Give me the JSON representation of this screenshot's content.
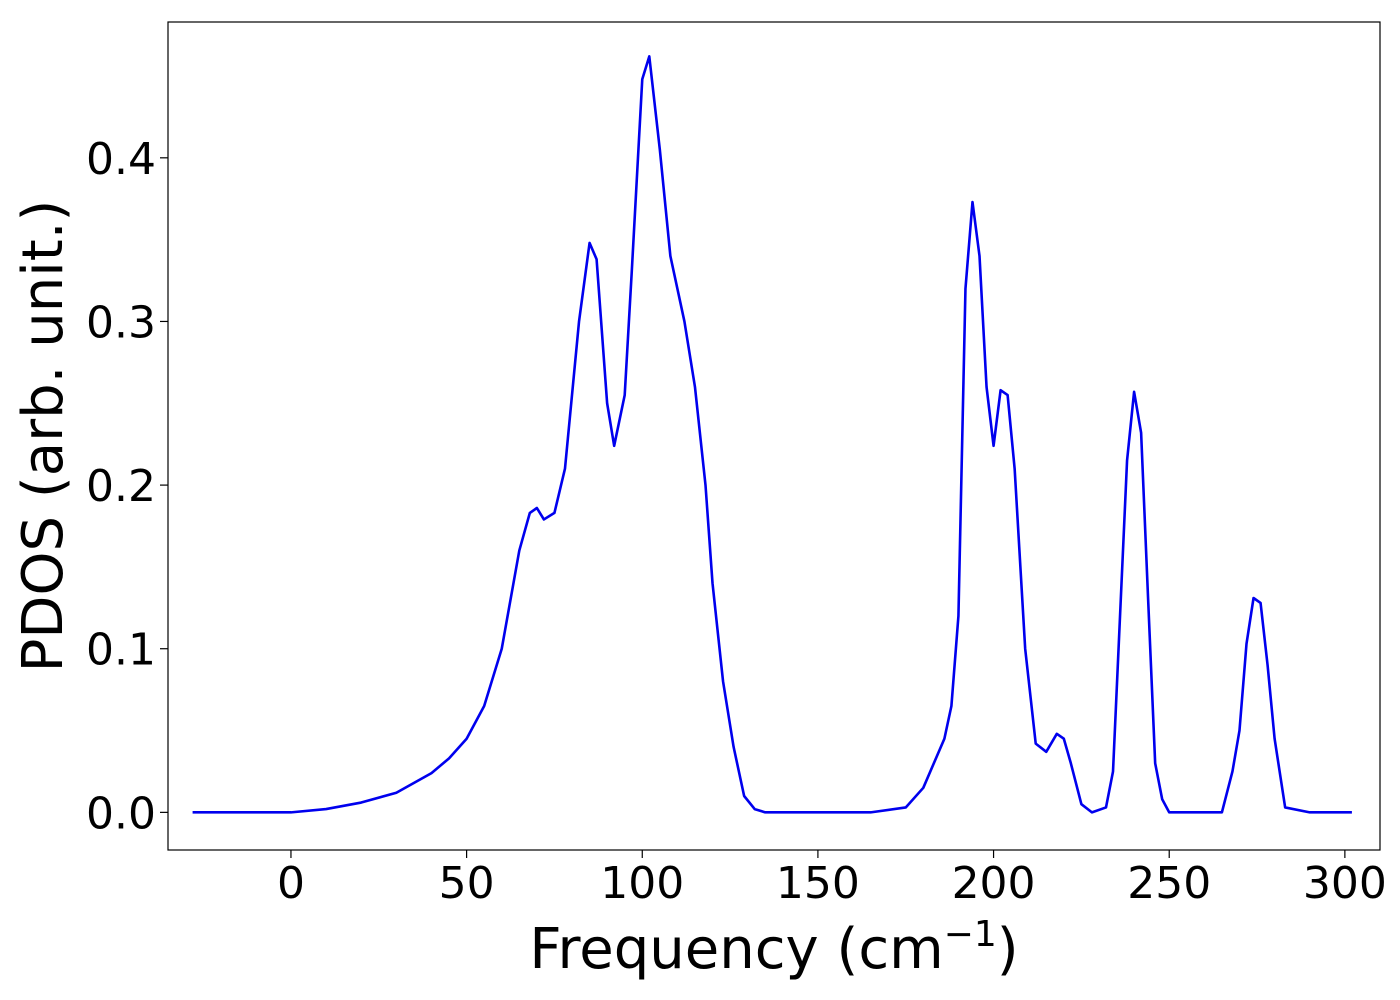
{
  "chart_data": {
    "type": "line",
    "title": "",
    "xlabel": "Frequency (cm",
    "xlabel_sup": "−1",
    "xlabel_close": ")",
    "ylabel": "PDOS (arb. unit.)",
    "xlim": [
      -35,
      310
    ],
    "ylim": [
      -0.023,
      0.483
    ],
    "xticks": [
      0,
      50,
      100,
      150,
      200,
      250,
      300
    ],
    "yticks": [
      0.0,
      0.1,
      0.2,
      0.3,
      0.4
    ],
    "xtick_labels": [
      "0",
      "50",
      "100",
      "150",
      "200",
      "250",
      "300"
    ],
    "ytick_labels": [
      "0.0",
      "0.1",
      "0.2",
      "0.3",
      "0.4"
    ],
    "grid": false,
    "legend": "none",
    "series": [
      {
        "color": "#0000ee",
        "x": [
          -28,
          0,
          10,
          20,
          30,
          40,
          45,
          50,
          55,
          60,
          65,
          68,
          70,
          72,
          75,
          78,
          82,
          85,
          87,
          90,
          92,
          95,
          97,
          100,
          102,
          105,
          108,
          112,
          115,
          118,
          120,
          123,
          126,
          129,
          132,
          135,
          150,
          165,
          175,
          180,
          183,
          186,
          188,
          190,
          192,
          194,
          196,
          198,
          200,
          202,
          204,
          206,
          209,
          212,
          215,
          218,
          220,
          222,
          225,
          228,
          232,
          234,
          236,
          238,
          240,
          242,
          244,
          246,
          248,
          250,
          254,
          265,
          268,
          270,
          272,
          274,
          276,
          278,
          280,
          283,
          290,
          302
        ],
        "y": [
          0.0,
          0.0,
          0.002,
          0.006,
          0.012,
          0.024,
          0.033,
          0.045,
          0.065,
          0.1,
          0.16,
          0.183,
          0.186,
          0.179,
          0.183,
          0.21,
          0.3,
          0.348,
          0.338,
          0.25,
          0.224,
          0.255,
          0.33,
          0.448,
          0.462,
          0.405,
          0.34,
          0.3,
          0.26,
          0.2,
          0.14,
          0.08,
          0.04,
          0.01,
          0.002,
          0.0,
          0.0,
          0.0,
          0.003,
          0.015,
          0.03,
          0.045,
          0.065,
          0.12,
          0.32,
          0.373,
          0.34,
          0.26,
          0.224,
          0.258,
          0.255,
          0.21,
          0.1,
          0.042,
          0.037,
          0.048,
          0.045,
          0.03,
          0.005,
          0.0,
          0.003,
          0.025,
          0.12,
          0.215,
          0.257,
          0.232,
          0.13,
          0.03,
          0.008,
          0.0,
          0.0,
          0.0,
          0.025,
          0.05,
          0.103,
          0.131,
          0.128,
          0.09,
          0.045,
          0.003,
          0.0,
          0.0
        ]
      }
    ]
  }
}
